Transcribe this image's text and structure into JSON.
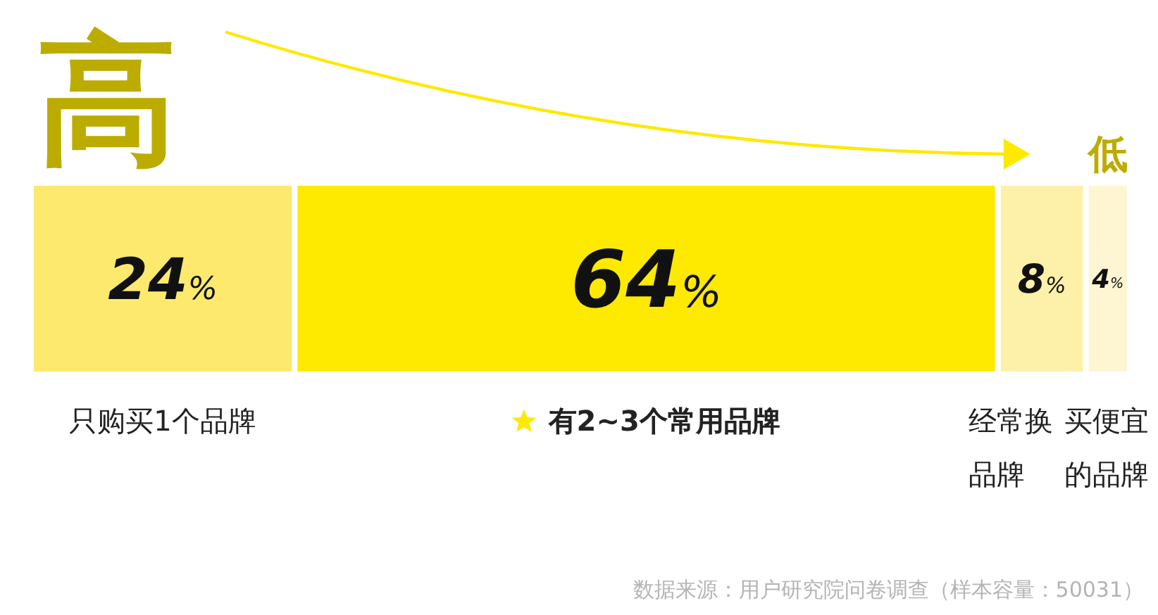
{
  "chart_data": {
    "type": "bar",
    "orientation": "horizontal",
    "stacked": true,
    "categories": [
      null
    ],
    "series": [
      {
        "name": "只购买1个品牌",
        "color": "#fde96e",
        "values": [
          24
        ],
        "value_labels": [
          "24%"
        ]
      },
      {
        "name": "有2~3个常用品牌",
        "color": "#fee900",
        "values": [
          64
        ],
        "value_labels": [
          "64%"
        ]
      },
      {
        "name": "经常换品牌",
        "color": "#fdf0a8",
        "values": [
          8
        ],
        "value_labels": [
          "8%"
        ]
      },
      {
        "name": "买便宜的品牌",
        "color": "#fef6d2",
        "values": [
          4
        ],
        "value_labels": [
          "4%"
        ]
      }
    ],
    "annotations": [
      "高",
      "低",
      "数据来源：用户研究院问卷调查（样本容量：50031）"
    ]
  }
}
